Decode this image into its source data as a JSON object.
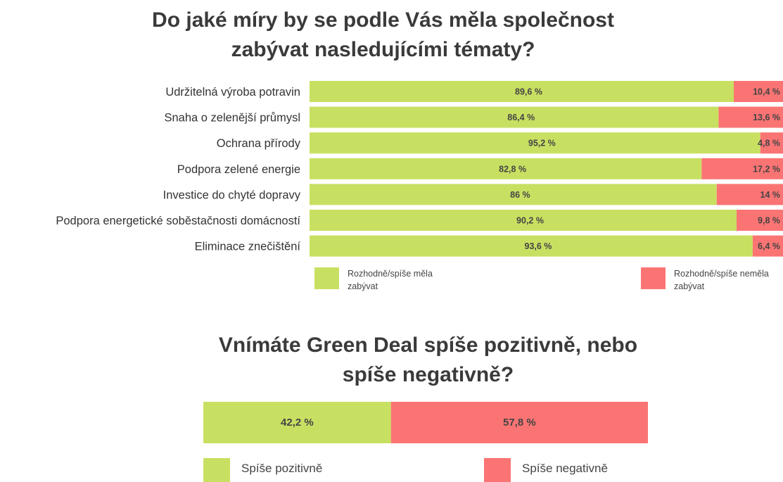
{
  "colors": {
    "positive": "#c8e062",
    "negative": "#fb7474",
    "text": "#3d3d3d"
  },
  "titles": {
    "chart1_line1": "Do jaké míry by se podle Vás měla společnost",
    "chart1_line2": "zabývat nasledujícími tématy?",
    "chart2_line1": "Vnímáte Green Deal spíše pozitivně, nebo",
    "chart2_line2": "spíše negativně?"
  },
  "legends": {
    "chart1_positive": "Rozhodně/spíše měla zabývat",
    "chart1_negative": "Rozhodně/spíše neměla zabývat",
    "chart2_positive": "Spíše pozitivně",
    "chart2_negative": "Spíše negativně"
  },
  "chart_data": [
    {
      "type": "bar",
      "orientation": "horizontal",
      "stacked": true,
      "percent_stacked": true,
      "title": "Do jaké míry by se podle Vás měla společnost zabývat nasledujícími tématy?",
      "categories": [
        "Udržitelná výroba potravin",
        "Snaha o  zelenější průmysl",
        "Ochrana přírody",
        "Podpora zelené energie",
        "Investice do chyté dopravy",
        "Podpora energetické soběstačnosti domácností",
        "Eliminace znečištění"
      ],
      "series": [
        {
          "name": "Rozhodně/spíše měla zabývat",
          "color": "#c8e062",
          "values": [
            89.6,
            86.4,
            95.2,
            82.8,
            86,
            90.2,
            93.6
          ],
          "labels": [
            "89,6 %",
            "86,4 %",
            "95,2 %",
            "82,8 %",
            "86 %",
            "90,2 %",
            "93,6 %"
          ]
        },
        {
          "name": "Rozhodně/spíše neměla zabývat",
          "color": "#fb7474",
          "values": [
            10.4,
            13.6,
            4.8,
            17.2,
            14,
            9.8,
            6.4
          ],
          "labels": [
            "10,4 %",
            "13,6 %",
            "4,8 %",
            "17,2 %",
            "14 %",
            "9,8 %",
            "6,4  %"
          ]
        }
      ],
      "legend": "bottom",
      "grid": false
    },
    {
      "type": "bar",
      "orientation": "horizontal",
      "stacked": true,
      "percent_stacked": true,
      "title": "Vnímáte Green Deal spíše pozitivně, nebo spíše negativně?",
      "categories": [
        ""
      ],
      "series": [
        {
          "name": "Spíše pozitivně",
          "color": "#c8e062",
          "values": [
            42.2
          ],
          "labels": [
            "42,2 %"
          ]
        },
        {
          "name": "Spíše negativně",
          "color": "#fb7474",
          "values": [
            57.8
          ],
          "labels": [
            "57,8 %"
          ]
        }
      ],
      "legend": "bottom",
      "grid": false
    }
  ]
}
